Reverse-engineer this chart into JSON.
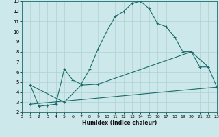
{
  "xlabel": "Humidex (Indice chaleur)",
  "ylabel": "",
  "background_color": "#cce8ea",
  "grid_color": "#b0d0d4",
  "line_color": "#1a6b6b",
  "xlim": [
    0,
    23
  ],
  "ylim": [
    2,
    13
  ],
  "xticks": [
    0,
    1,
    2,
    3,
    4,
    5,
    6,
    7,
    8,
    9,
    10,
    11,
    12,
    13,
    14,
    15,
    16,
    17,
    18,
    19,
    20,
    21,
    22,
    23
  ],
  "yticks": [
    2,
    3,
    4,
    5,
    6,
    7,
    8,
    9,
    10,
    11,
    12,
    13
  ],
  "series1_x": [
    1,
    2,
    3,
    4,
    5,
    6,
    7,
    8,
    9,
    10,
    11,
    12,
    13,
    14,
    15,
    16,
    17,
    18,
    19,
    20,
    21,
    22,
    23
  ],
  "series1_y": [
    4.7,
    2.6,
    2.7,
    2.8,
    6.3,
    5.2,
    4.8,
    6.3,
    8.3,
    10.0,
    11.5,
    12.0,
    12.8,
    13.0,
    12.3,
    10.8,
    10.5,
    9.5,
    8.0,
    8.0,
    6.5,
    6.5,
    4.5
  ],
  "series2_x": [
    1,
    5,
    7,
    9,
    20,
    22
  ],
  "series2_y": [
    4.7,
    3.0,
    4.7,
    4.8,
    8.0,
    6.5
  ],
  "series3_x": [
    1,
    23
  ],
  "series3_y": [
    2.8,
    4.5
  ]
}
